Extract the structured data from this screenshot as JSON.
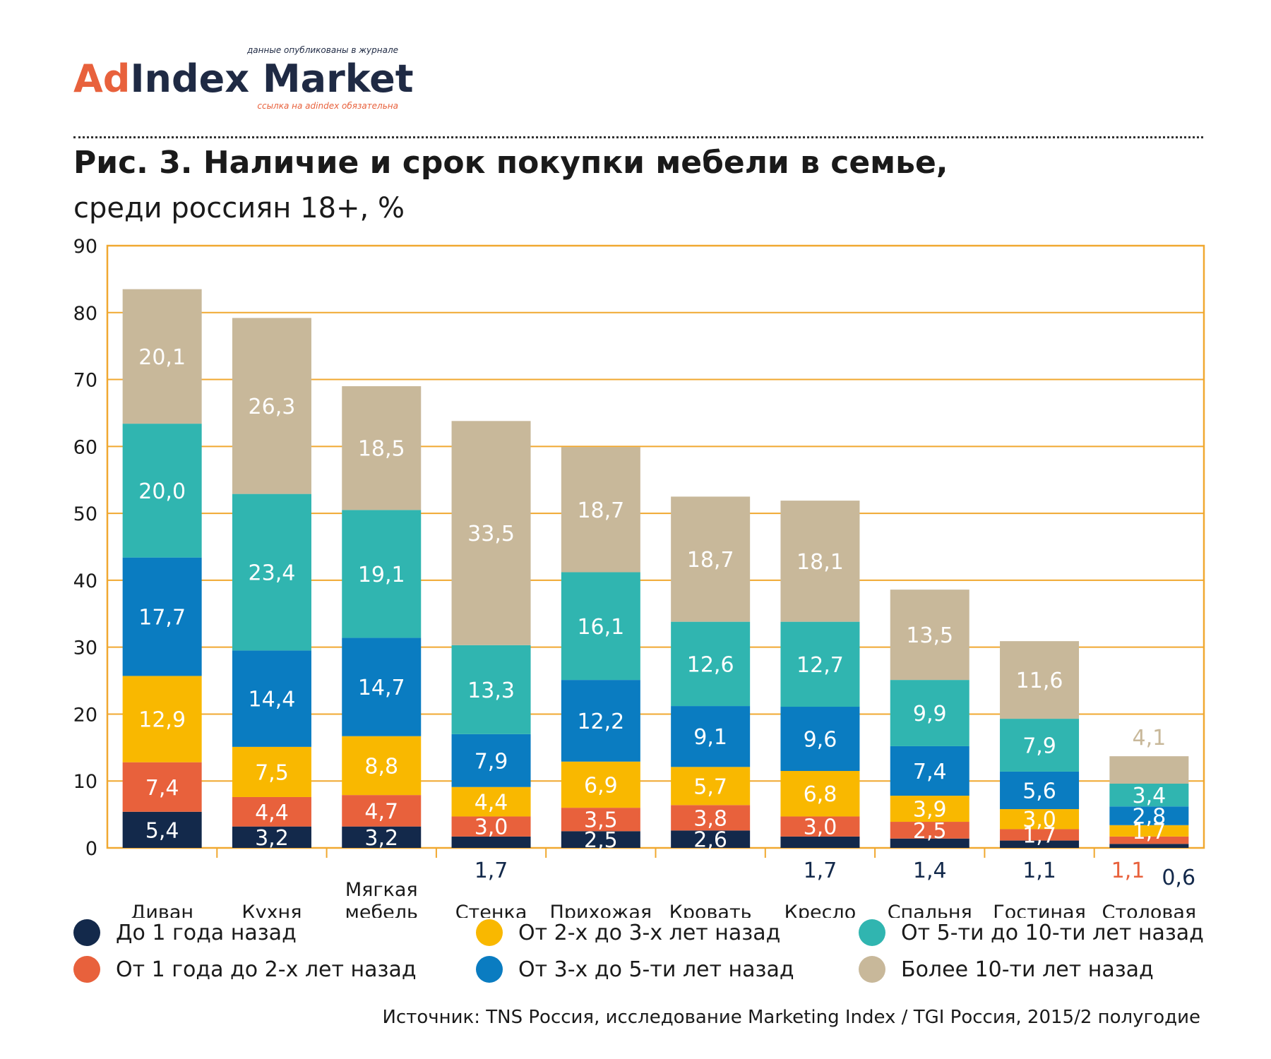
{
  "header": {
    "logo": {
      "tagline_top": "данные опубликованы в журнале",
      "brand_ad": "Ad",
      "brand_rest": "Index Market",
      "tagline_bottom": "ссылка на adindex обязательна"
    },
    "title": "Рис. 3. Наличие и срок покупки мебели в семье,",
    "subtitle": "среди россиян 18+, %"
  },
  "source": "Источник: TNS Россия, исследование Marketing Index / TGI Россия, 2015/2 полугодие",
  "colors": {
    "grid": "#f0a830",
    "axis_frame": "#f0a830"
  },
  "chart_data": {
    "type": "bar",
    "stacked": true,
    "categories": [
      "Диван",
      "Кухня",
      "Мягкая мебель",
      "Стенка",
      "Прихожая",
      "Кровать",
      "Кресло",
      "Спальня",
      "Гостиная",
      "Столовая"
    ],
    "series": [
      {
        "name": "До 1 года назад",
        "color": "#13294b",
        "values": [
          5.4,
          3.2,
          3.2,
          1.7,
          2.5,
          2.6,
          1.7,
          1.4,
          1.1,
          0.6
        ],
        "labels": [
          "5,4",
          "3,2",
          "3,2",
          "1,7",
          "2,5",
          "2,6",
          "1,7",
          "1,4",
          "1,1",
          "0,6"
        ]
      },
      {
        "name": "От 1 года до 2-х лет назад",
        "color": "#e8613c",
        "values": [
          7.4,
          4.4,
          4.7,
          3.0,
          3.5,
          3.8,
          3.0,
          2.5,
          1.7,
          1.1
        ],
        "labels": [
          "7,4",
          "4,4",
          "4,7",
          "3,0",
          "3,5",
          "3,8",
          "3,0",
          "2,5",
          "1,7",
          "1,1"
        ]
      },
      {
        "name": "От 2-х до 3-х лет назад",
        "color": "#f9b800",
        "values": [
          12.9,
          7.5,
          8.8,
          4.4,
          6.9,
          5.7,
          6.8,
          3.9,
          3.0,
          1.7
        ],
        "labels": [
          "12,9",
          "7,5",
          "8,8",
          "4,4",
          "6,9",
          "5,7",
          "6,8",
          "3,9",
          "3,0",
          "1,7"
        ]
      },
      {
        "name": "От 3-х до 5-ти лет назад",
        "color": "#0a7cc1",
        "values": [
          17.7,
          14.4,
          14.7,
          7.9,
          12.2,
          9.1,
          9.6,
          7.4,
          5.6,
          2.8
        ],
        "labels": [
          "17,7",
          "14,4",
          "14,7",
          "7,9",
          "12,2",
          "9,1",
          "9,6",
          "7,4",
          "5,6",
          "2,8"
        ]
      },
      {
        "name": "От 5-ти до 10-ти лет назад",
        "color": "#30b5b0",
        "values": [
          20.0,
          23.4,
          19.1,
          13.3,
          16.1,
          12.6,
          12.7,
          9.9,
          7.9,
          3.4
        ],
        "labels": [
          "20,0",
          "23,4",
          "19,1",
          "13,3",
          "16,1",
          "12,6",
          "12,7",
          "9,9",
          "7,9",
          "3,4"
        ]
      },
      {
        "name": "Более 10-ти лет назад",
        "color": "#c8b89a",
        "values": [
          20.1,
          26.3,
          18.5,
          33.5,
          18.7,
          18.7,
          18.1,
          13.5,
          11.6,
          4.1
        ],
        "labels": [
          "20,1",
          "26,3",
          "18,5",
          "33,5",
          "18,7",
          "18,7",
          "18,1",
          "13,5",
          "11,6",
          "4,1"
        ]
      }
    ],
    "ylim": [
      0,
      90
    ],
    "yticks": [
      0,
      10,
      20,
      30,
      40,
      50,
      60,
      70,
      80,
      90
    ],
    "grid": true,
    "legend_position": "bottom"
  }
}
